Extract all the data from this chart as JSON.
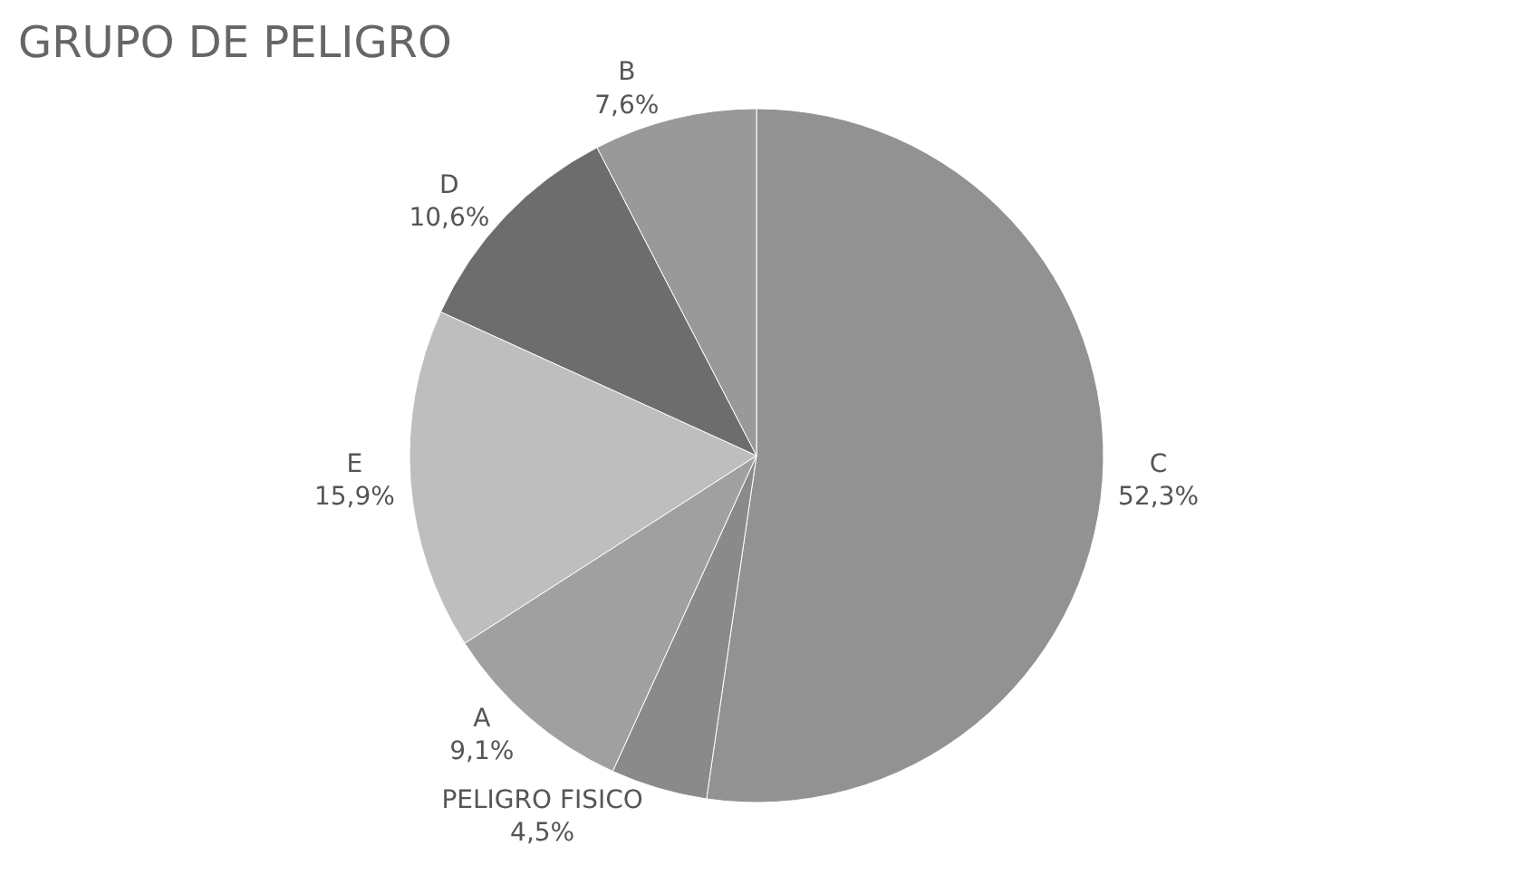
{
  "chart_data": {
    "type": "pie",
    "title": "GRUPO DE PELIGRO",
    "categories": [
      "C",
      "PELIGRO FISICO",
      "A",
      "E",
      "D",
      "B"
    ],
    "values": [
      52.3,
      4.5,
      9.1,
      15.9,
      10.6,
      7.6
    ],
    "value_labels": [
      "52,3%",
      "4,5%",
      "9,1%",
      "15,9%",
      "10,6%",
      "7,6%"
    ],
    "colors": [
      "#929292",
      "#8a8a8a",
      "#a0a0a0",
      "#bebebe",
      "#6d6d6d",
      "#999999"
    ],
    "legend": false
  }
}
